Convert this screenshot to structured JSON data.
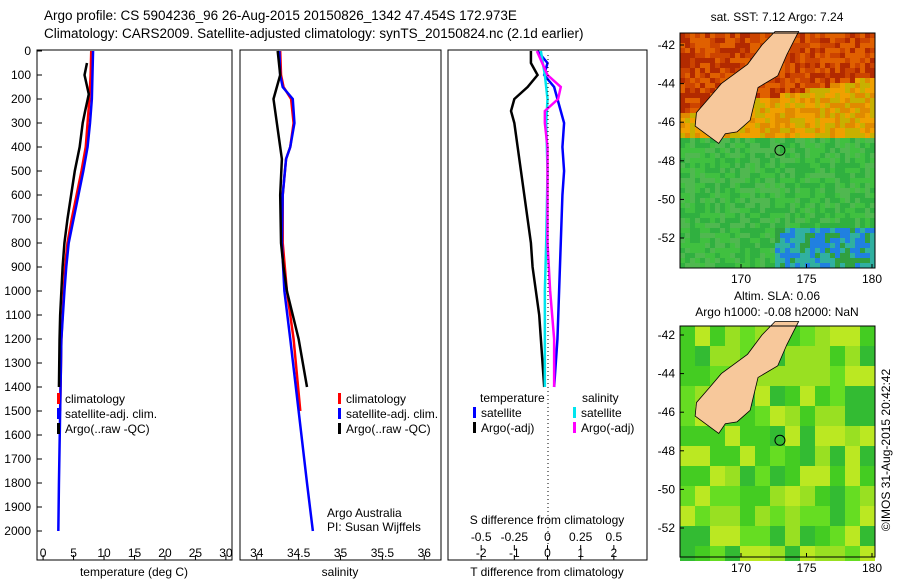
{
  "header": {
    "line1": "Argo profile: CS 5904236_96 26-Aug-2015 20150826_1342 47.454S 172.973E",
    "line2": "Climatology: CARS2009. Satellite-adjusted climatology: synTS_20150824.nc (2.1d earlier)"
  },
  "colors": {
    "climatology": "#ff0000",
    "satellite": "#0000ff",
    "argo": "#000000",
    "sal_satellite": "#00e5ee",
    "sal_argo": "#ff00ff",
    "land": "#f7c89b"
  },
  "chart_data": [
    {
      "type": "line",
      "title": "",
      "xlabel": "temperature (deg C)",
      "ylabel": "",
      "xlim": [
        -1,
        31
      ],
      "ylim": [
        2000,
        0
      ],
      "xticks": [
        "0",
        "5",
        "10",
        "15",
        "20",
        "25",
        "30"
      ],
      "yticks": [
        "0",
        "100",
        "200",
        "300",
        "400",
        "500",
        "600",
        "700",
        "800",
        "900",
        "1000",
        "1100",
        "1200",
        "1300",
        "1400",
        "1500",
        "1600",
        "1700",
        "1800",
        "1900",
        "2000"
      ],
      "legend": [
        "climatology",
        "satellite-adj. clim.",
        "Argo(..raw -QC)"
      ],
      "series": [
        {
          "name": "climatology",
          "color": "#ff0000",
          "depth": [
            0,
            100,
            200,
            300,
            400,
            500,
            600,
            700,
            800,
            900,
            1000,
            1200,
            1500
          ],
          "values": [
            7.9,
            7.8,
            7.6,
            7.3,
            7.0,
            6.3,
            5.5,
            4.7,
            4.0,
            3.6,
            3.4,
            3.0,
            2.8
          ]
        },
        {
          "name": "satellite-adj. clim.",
          "color": "#0000ff",
          "depth": [
            0,
            100,
            200,
            300,
            400,
            500,
            600,
            700,
            800,
            900,
            1000,
            1200,
            1500,
            1800,
            2000
          ],
          "values": [
            8.2,
            8.1,
            8.0,
            7.7,
            7.3,
            6.6,
            5.8,
            5.0,
            4.2,
            3.8,
            3.5,
            3.0,
            2.8,
            2.6,
            2.5
          ]
        },
        {
          "name": "Argo(..raw -QC)",
          "color": "#000000",
          "depth": [
            50,
            100,
            180,
            250,
            300,
            400,
            500,
            600,
            700,
            800,
            900,
            1000,
            1100,
            1200,
            1400
          ],
          "values": [
            7.2,
            6.8,
            7.5,
            6.9,
            6.5,
            6.0,
            5.2,
            4.6,
            4.0,
            3.5,
            3.2,
            3.0,
            2.8,
            2.7,
            2.6
          ]
        }
      ]
    },
    {
      "type": "line",
      "title": "",
      "xlabel": "salinity",
      "ylabel": "",
      "xlim": [
        33.8,
        36.2
      ],
      "ylim": [
        2000,
        0
      ],
      "xticks": [
        "34",
        "34.5",
        "35",
        "35.5",
        "36"
      ],
      "legend": [
        "climatology",
        "satellite-adj. clim.",
        "Argo(..raw -QC)"
      ],
      "annotation": [
        "Argo Australia",
        "PI: Susan Wijffels"
      ],
      "series": [
        {
          "name": "climatology",
          "color": "#ff0000",
          "depth": [
            0,
            100,
            150,
            200,
            300,
            400,
            450,
            600,
            800,
            1000,
            1200,
            1500
          ],
          "values": [
            34.28,
            34.29,
            34.32,
            34.41,
            34.44,
            34.4,
            34.35,
            34.31,
            34.31,
            34.36,
            34.44,
            34.52
          ]
        },
        {
          "name": "satellite-adj. clim.",
          "color": "#0000ff",
          "depth": [
            0,
            100,
            150,
            200,
            300,
            400,
            450,
            600,
            800,
            1000,
            1200,
            1500,
            1800,
            2000
          ],
          "values": [
            34.27,
            34.28,
            34.31,
            34.43,
            34.45,
            34.4,
            34.35,
            34.31,
            34.3,
            34.33,
            34.4,
            34.5,
            34.6,
            34.67
          ]
        },
        {
          "name": "Argo(..raw -QC)",
          "color": "#000000",
          "depth": [
            0,
            100,
            200,
            300,
            400,
            450,
            600,
            800,
            900,
            1000,
            1200,
            1400
          ],
          "values": [
            34.25,
            34.28,
            34.2,
            34.24,
            34.28,
            34.3,
            34.28,
            34.29,
            34.32,
            34.36,
            34.5,
            34.6
          ]
        }
      ]
    },
    {
      "type": "line",
      "title": "",
      "xlabel": "T difference from climatology",
      "x2label": "S difference from climatology",
      "xlim": [
        -3,
        3
      ],
      "x2lim": [
        -0.75,
        0.75
      ],
      "ylim": [
        2000,
        0
      ],
      "xticks": [
        "-2",
        "-1",
        "0",
        "1",
        "2"
      ],
      "x2ticks": [
        "-0.5",
        "-0.25",
        "0",
        "0.25",
        "0.5"
      ],
      "legend": {
        "temperature_header": "temperature",
        "salinity_header": "salinity",
        "items": [
          "satellite",
          "Argo(-adj)",
          "satellite",
          "Argo(-adj)"
        ]
      },
      "series": [
        {
          "name": "temperature satellite",
          "axis": "T",
          "color": "#0000ff",
          "depth": [
            0,
            50,
            100,
            150,
            200,
            300,
            400,
            500,
            600,
            800,
            1000,
            1200,
            1400
          ],
          "values": [
            -0.3,
            0.0,
            -0.1,
            0.2,
            0.3,
            0.5,
            0.45,
            0.5,
            0.45,
            0.4,
            0.35,
            0.3,
            0.2
          ]
        },
        {
          "name": "temperature Argo(-adj)",
          "axis": "T",
          "color": "#000000",
          "depth": [
            0,
            50,
            100,
            150,
            200,
            250,
            300,
            400,
            500,
            600,
            700,
            800,
            900,
            1000,
            1100,
            1200,
            1400
          ],
          "values": [
            -0.5,
            -0.5,
            -0.3,
            -0.6,
            -1.0,
            -1.1,
            -1.0,
            -0.9,
            -0.8,
            -0.7,
            -0.6,
            -0.5,
            -0.45,
            -0.35,
            -0.25,
            -0.2,
            -0.1
          ]
        },
        {
          "name": "salinity satellite",
          "axis": "S",
          "color": "#00e5ee",
          "depth": [
            0,
            100,
            200,
            300,
            500,
            800,
            1000,
            1200,
            1400
          ],
          "values": [
            -0.05,
            -0.02,
            0.0,
            -0.01,
            0.0,
            -0.01,
            -0.02,
            -0.02,
            -0.02
          ]
        },
        {
          "name": "salinity Argo(-adj)",
          "axis": "S",
          "color": "#ff00ff",
          "depth": [
            0,
            100,
            150,
            200,
            250,
            300,
            400,
            500,
            800,
            1000,
            1200,
            1400
          ],
          "values": [
            -0.08,
            0.0,
            0.1,
            0.08,
            -0.02,
            -0.02,
            0.0,
            0.0,
            0.0,
            0.02,
            0.05,
            0.05
          ]
        }
      ]
    }
  ],
  "maps": [
    {
      "title": "sat. SST: 7.12 Argo: 7.24",
      "lat_ticks": [
        "-42",
        "-44",
        "-46",
        "-48",
        "-50",
        "-52"
      ],
      "lon_ticks": [
        "170",
        "175",
        "180"
      ],
      "argo_lon": 172.973,
      "argo_lat": -47.454
    },
    {
      "title_line1": "Altim. SLA: 0.06",
      "title_line2": "Argo h1000: -0.08 h2000: NaN",
      "lat_ticks": [
        "-42",
        "-44",
        "-46",
        "-48",
        "-50",
        "-52"
      ],
      "lon_ticks": [
        "170",
        "175",
        "180"
      ],
      "argo_lon": 172.973,
      "argo_lat": -47.454
    }
  ],
  "footer": {
    "stamp": "©IMOS 31-Aug-2015 20:42:42"
  }
}
